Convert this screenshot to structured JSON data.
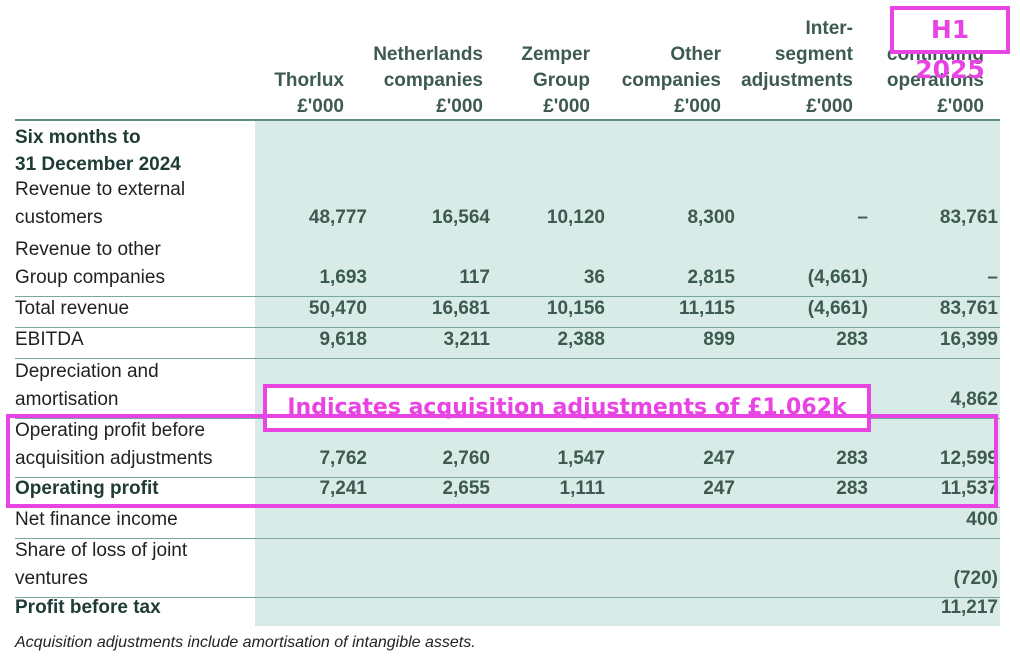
{
  "columns": [
    {
      "lines": [
        "Thorlux",
        "£'000"
      ]
    },
    {
      "lines": [
        "Netherlands",
        "companies",
        "£'000"
      ]
    },
    {
      "lines": [
        "Zemper",
        "Group",
        "£'000"
      ]
    },
    {
      "lines": [
        "Other",
        "companies",
        "£'000"
      ]
    },
    {
      "lines": [
        "Inter-",
        "segment",
        "adjustments",
        "£'000"
      ]
    },
    {
      "lines": [
        "continuing",
        "operations",
        "£'000"
      ]
    }
  ],
  "section_title": [
    "Six months to",
    "31 December 2024"
  ],
  "rows": [
    {
      "label": [
        "Revenue to external",
        "customers"
      ],
      "values": [
        "48,777",
        "16,564",
        "10,120",
        "8,300",
        "–",
        "83,761"
      ]
    },
    {
      "label": [
        "Revenue to other",
        "Group companies"
      ],
      "values": [
        "1,693",
        "117",
        "36",
        "2,815",
        "(4,661)",
        "–"
      ]
    },
    {
      "label": [
        "Total revenue"
      ],
      "values": [
        "50,470",
        "16,681",
        "10,156",
        "11,115",
        "(4,661)",
        "83,761"
      ]
    },
    {
      "label": [
        "EBITDA"
      ],
      "values": [
        "9,618",
        "3,211",
        "2,388",
        "899",
        "283",
        "16,399"
      ]
    },
    {
      "label": [
        "Depreciation and",
        "amortisation"
      ],
      "values": [
        "",
        "",
        "",
        "",
        "",
        "4,862"
      ]
    },
    {
      "label": [
        "Operating profit before",
        "acquisition adjustments"
      ],
      "values": [
        "7,762",
        "2,760",
        "1,547",
        "247",
        "283",
        "12,599"
      ]
    },
    {
      "label": [
        "Operating profit"
      ],
      "values": [
        "7,241",
        "2,655",
        "1,111",
        "247",
        "283",
        "11,537"
      ]
    },
    {
      "label": [
        "Net finance income"
      ],
      "values": [
        "",
        "",
        "",
        "",
        "",
        "400"
      ]
    },
    {
      "label": [
        "Share of loss of joint",
        "ventures"
      ],
      "values": [
        "",
        "",
        "",
        "",
        "",
        "(720)"
      ]
    },
    {
      "label": [
        "Profit before tax"
      ],
      "values": [
        "",
        "",
        "",
        "",
        "",
        "11,217"
      ]
    }
  ],
  "footnote": "Acquisition adjustments include amortisation of intangible assets.",
  "annotations": {
    "period_tag": "H1 2025",
    "acquisition_note": "Indicates acquisition adjustments of £1,062k",
    "color": "#e844e3"
  }
}
